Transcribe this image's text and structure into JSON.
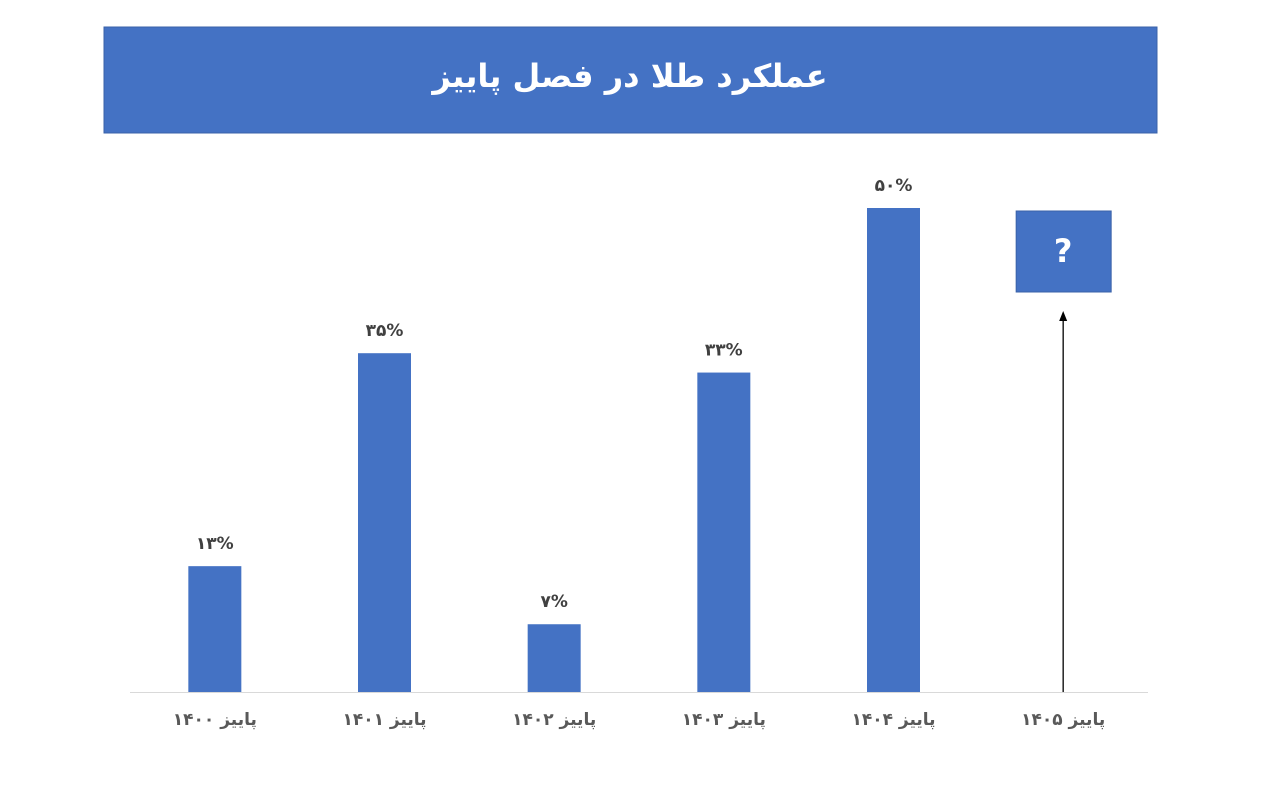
{
  "chart_data": {
    "type": "bar",
    "title": "عملکرد طلا در فصل پاییز",
    "categories": [
      "پاییز ۱۴۰۰",
      "پاییز ۱۴۰۱",
      "پاییز ۱۴۰۲",
      "پاییز ۱۴۰۳",
      "پاییز ۱۴۰۴",
      "پاییز ۱۴۰۵"
    ],
    "values": [
      13,
      35,
      7,
      33,
      50,
      null
    ],
    "value_labels": [
      "۱۳%",
      "۳۵%",
      "۷%",
      "۳۳%",
      "۵۰%",
      null
    ],
    "color": "#4472c4",
    "annotation": "?"
  }
}
